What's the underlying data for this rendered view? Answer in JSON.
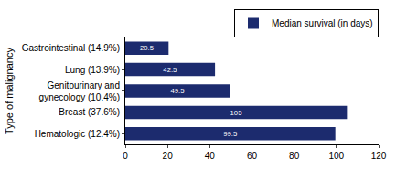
{
  "chart_data": {
    "type": "bar",
    "orientation": "horizontal",
    "y_label": "Type of malignancy",
    "categories": [
      "Gastrointestinal (14.9%)",
      "Lung (13.9%)",
      "Genitourinary and gynecology (10.4%)",
      "Breast (37.6%)",
      "Hematologic (12.4%)"
    ],
    "series": [
      {
        "name": "Median survival (in days)",
        "color": "#1c2b6e",
        "values": [
          20.5,
          42.5,
          49.5,
          105,
          99.5
        ]
      }
    ],
    "xlim": [
      0,
      120
    ],
    "xticks": [
      0,
      20,
      40,
      60,
      80,
      100,
      120
    ],
    "data_labels": true,
    "legend": "top right",
    "grid": false
  }
}
